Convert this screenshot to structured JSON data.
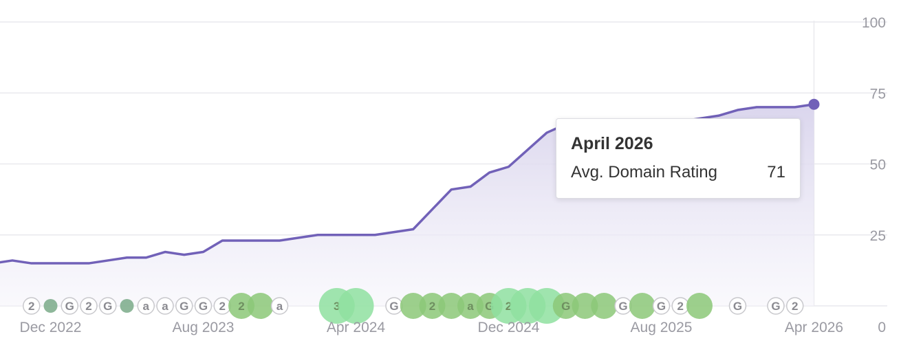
{
  "chart_data": {
    "type": "area",
    "title": "",
    "xlabel": "",
    "ylabel": "",
    "ylim": [
      0,
      100
    ],
    "y_ticks": [
      "100",
      "75",
      "50",
      "25",
      "0"
    ],
    "x_ticks": [
      "Dec 2022",
      "Aug 2023",
      "Apr 2024",
      "Dec 2024",
      "Aug 2025",
      "Apr 2026"
    ],
    "grid": true,
    "series": [
      {
        "values": [
          {
            "x": "2022-08",
            "y": 13
          },
          {
            "x": "2022-09",
            "y": 15
          },
          {
            "x": "2022-10",
            "y": 16
          },
          {
            "x": "2022-11",
            "y": 15
          },
          {
            "x": "2022-12",
            "y": 15
          },
          {
            "x": "2023-01",
            "y": 15
          },
          {
            "x": "2023-02",
            "y": 15
          },
          {
            "x": "2023-03",
            "y": 16
          },
          {
            "x": "2023-04",
            "y": 17
          },
          {
            "x": "2023-05",
            "y": 17
          },
          {
            "x": "2023-06",
            "y": 19
          },
          {
            "x": "2023-07",
            "y": 18
          },
          {
            "x": "2023-08",
            "y": 19
          },
          {
            "x": "2023-09",
            "y": 23
          },
          {
            "x": "2023-10",
            "y": 23
          },
          {
            "x": "2023-11",
            "y": 23
          },
          {
            "x": "2023-12",
            "y": 23
          },
          {
            "x": "2024-01",
            "y": 24
          },
          {
            "x": "2024-02",
            "y": 25
          },
          {
            "x": "2024-03",
            "y": 25
          },
          {
            "x": "2024-04",
            "y": 25
          },
          {
            "x": "2024-05",
            "y": 25
          },
          {
            "x": "2024-06",
            "y": 26
          },
          {
            "x": "2024-07",
            "y": 27
          },
          {
            "x": "2024-08",
            "y": 34
          },
          {
            "x": "2024-09",
            "y": 41
          },
          {
            "x": "2024-10",
            "y": 42
          },
          {
            "x": "2024-11",
            "y": 47
          },
          {
            "x": "2024-12",
            "y": 49
          },
          {
            "x": "2025-01",
            "y": 55
          },
          {
            "x": "2025-02",
            "y": 61
          },
          {
            "x": "2025-03",
            "y": 64
          },
          {
            "x": "2025-04",
            "y": 65
          },
          {
            "x": "2025-05",
            "y": 65
          },
          {
            "x": "2025-06",
            "y": 65
          },
          {
            "x": "2025-07",
            "y": 65
          },
          {
            "x": "2025-08",
            "y": 65
          },
          {
            "x": "2025-09",
            "y": 65
          },
          {
            "x": "2025-10",
            "y": 66
          },
          {
            "x": "2025-11",
            "y": 67
          },
          {
            "x": "2025-12",
            "y": 69
          },
          {
            "x": "2026-01",
            "y": 70
          },
          {
            "x": "2026-02",
            "y": 70
          },
          {
            "x": "2026-03",
            "y": 70
          },
          {
            "x": "2026-04",
            "y": 71
          }
        ]
      }
    ],
    "colors": {
      "line": "#7161b8",
      "area_top": "#d8d3ec",
      "area_bottom": "#f6f5fb",
      "grid": "#e9e9ee",
      "tick_text": "#9a9aa2",
      "marker_light": "#8fe0a0",
      "marker_mid": "#8cc878",
      "marker_dark": "#7aaa88",
      "badge_border": "#c8c8cc",
      "badge_text": "#8a8a90"
    },
    "event_markers": [
      {
        "x": "2022-08",
        "kind": "badge",
        "label": "2"
      },
      {
        "x": "2022-08",
        "kind": "badge",
        "label": "2"
      },
      {
        "x": "2022-11",
        "kind": "badge",
        "label": "2"
      },
      {
        "x": "2022-12",
        "kind": "dot",
        "size": "small",
        "tone": "dark"
      },
      {
        "x": "2023-01",
        "kind": "badge",
        "label": "G"
      },
      {
        "x": "2023-02",
        "kind": "badge",
        "label": "2"
      },
      {
        "x": "2023-03",
        "kind": "badge",
        "label": "G"
      },
      {
        "x": "2023-04",
        "kind": "dot",
        "size": "small",
        "tone": "dark"
      },
      {
        "x": "2023-05",
        "kind": "badge",
        "label": "a"
      },
      {
        "x": "2023-06",
        "kind": "badge",
        "label": "a"
      },
      {
        "x": "2023-07",
        "kind": "badge",
        "label": "G"
      },
      {
        "x": "2023-08",
        "kind": "badge",
        "label": "G"
      },
      {
        "x": "2023-09",
        "kind": "badge",
        "label": "2"
      },
      {
        "x": "2023-10",
        "kind": "dot",
        "size": "medium",
        "tone": "mid",
        "label": "2"
      },
      {
        "x": "2023-11",
        "kind": "dot",
        "size": "medium",
        "tone": "mid"
      },
      {
        "x": "2023-12",
        "kind": "badge",
        "label": "a"
      },
      {
        "x": "2024-03",
        "kind": "dot",
        "size": "large",
        "tone": "light",
        "label": "3"
      },
      {
        "x": "2024-04",
        "kind": "dot",
        "size": "large",
        "tone": "light"
      },
      {
        "x": "2024-06",
        "kind": "badge",
        "label": "G"
      },
      {
        "x": "2024-07",
        "kind": "dot",
        "size": "medium",
        "tone": "mid"
      },
      {
        "x": "2024-08",
        "kind": "dot",
        "size": "medium",
        "tone": "mid",
        "label": "2"
      },
      {
        "x": "2024-09",
        "kind": "dot",
        "size": "medium",
        "tone": "mid"
      },
      {
        "x": "2024-10",
        "kind": "dot",
        "size": "medium",
        "tone": "mid",
        "label": "a"
      },
      {
        "x": "2024-11",
        "kind": "dot",
        "size": "medium",
        "tone": "mid",
        "label": "G"
      },
      {
        "x": "2024-12",
        "kind": "dot",
        "size": "large",
        "tone": "light",
        "label": "2"
      },
      {
        "x": "2025-01",
        "kind": "dot",
        "size": "large",
        "tone": "light"
      },
      {
        "x": "2025-02",
        "kind": "dot",
        "size": "large",
        "tone": "light"
      },
      {
        "x": "2025-03",
        "kind": "dot",
        "size": "medium",
        "tone": "mid",
        "label": "G"
      },
      {
        "x": "2025-04",
        "kind": "dot",
        "size": "medium",
        "tone": "mid"
      },
      {
        "x": "2025-05",
        "kind": "dot",
        "size": "medium",
        "tone": "mid"
      },
      {
        "x": "2025-06",
        "kind": "badge",
        "label": "G"
      },
      {
        "x": "2025-07",
        "kind": "dot",
        "size": "medium",
        "tone": "mid"
      },
      {
        "x": "2025-08",
        "kind": "badge",
        "label": "G"
      },
      {
        "x": "2025-09",
        "kind": "badge",
        "label": "2"
      },
      {
        "x": "2025-10",
        "kind": "dot",
        "size": "medium",
        "tone": "mid"
      },
      {
        "x": "2025-12",
        "kind": "badge",
        "label": "G"
      },
      {
        "x": "2026-02",
        "kind": "badge",
        "label": "G"
      },
      {
        "x": "2026-03",
        "kind": "badge",
        "label": "2"
      }
    ],
    "tooltip": {
      "title": "April 2026",
      "metric_label": "Avg. Domain Rating",
      "metric_value": "71"
    }
  }
}
